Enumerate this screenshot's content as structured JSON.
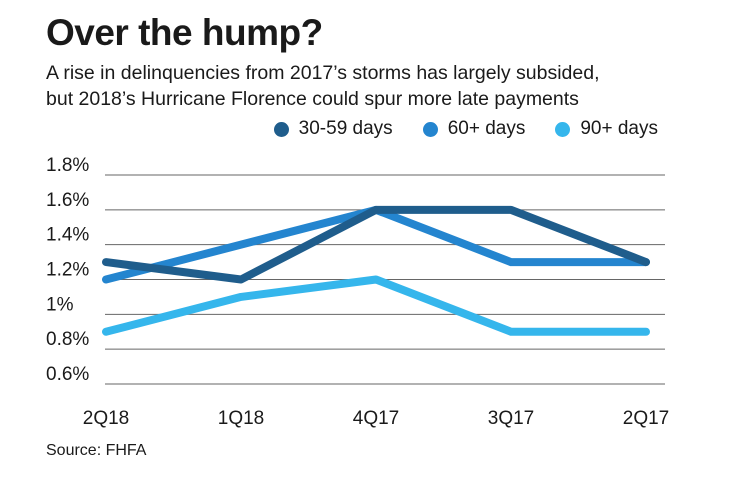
{
  "title": "Over the hump?",
  "subtitle_line1": "A rise in delinquencies from 2017’s storms has largely subsided,",
  "subtitle_line2": "but 2018’s Hurricane Florence could spur more late payments",
  "source": "Source: FHFA",
  "chart_data": {
    "type": "line",
    "categories": [
      "2Q18",
      "1Q18",
      "4Q17",
      "3Q17",
      "2Q17"
    ],
    "series": [
      {
        "name": "30-59 days",
        "color": "#1f5d8c",
        "values": [
          1.3,
          1.2,
          1.6,
          1.6,
          1.3
        ]
      },
      {
        "name": "60+ days",
        "color": "#2485cf",
        "values": [
          1.2,
          1.4,
          1.6,
          1.3,
          1.3
        ]
      },
      {
        "name": "90+ days",
        "color": "#35b6ec",
        "values": [
          0.9,
          1.1,
          1.2,
          0.9,
          0.9
        ]
      }
    ],
    "y_ticks": [
      {
        "value": 1.8,
        "label": "1.8%"
      },
      {
        "value": 1.6,
        "label": "1.6%"
      },
      {
        "value": 1.4,
        "label": "1.4%"
      },
      {
        "value": 1.2,
        "label": "1.2%"
      },
      {
        "value": 1.0,
        "label": "1%"
      },
      {
        "value": 0.8,
        "label": "0.8%"
      },
      {
        "value": 0.6,
        "label": "0.6%"
      }
    ],
    "ylim": [
      0.6,
      1.8
    ],
    "grid": true,
    "legend_position": "top-right"
  }
}
